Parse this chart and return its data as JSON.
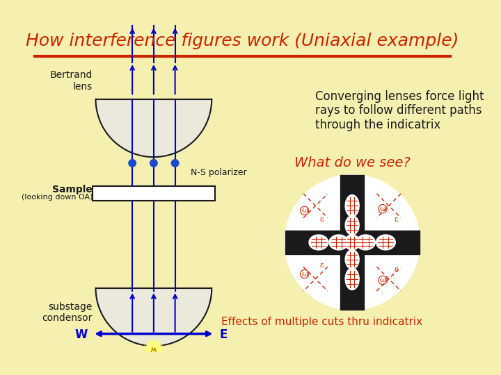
{
  "title": "How interference figures work (Uniaxial example)",
  "title_color": "#cc2200",
  "background_color": "#f5f0b0",
  "title_fontsize": 18,
  "converging_text": "Converging lenses force light\nrays to follow different paths\nthrough the indicatrix",
  "what_text": "What do we see?",
  "effects_text": "Effects of multiple cuts thru indicatrix",
  "bertrand_text": "Bertrand\nlens",
  "sample_text": "Sample",
  "sample_sub_text": "(looking down OA)",
  "substage_text": "substage\ncondensor",
  "ns_polarizer_text": "N-S polarizer",
  "W_text": "W",
  "E_text": "E",
  "dark_color": "#1a1a1a",
  "red_color": "#cc2200",
  "blue_color": "#0000cc",
  "white_color": "#ffffff",
  "lens_fill": "#e8e8e8",
  "dot_color": "#1a4acc"
}
